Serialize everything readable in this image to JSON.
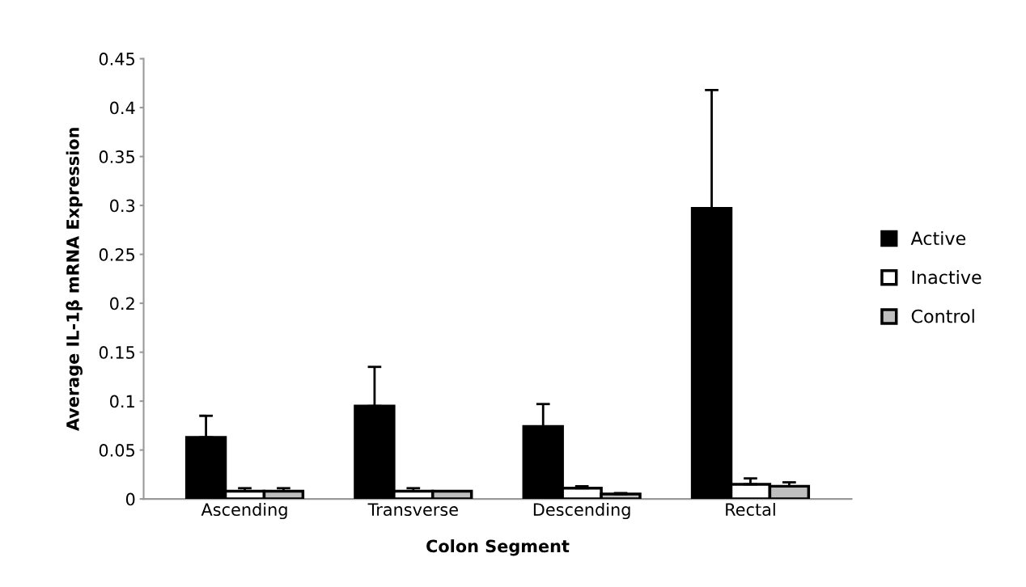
{
  "chart_data": {
    "type": "bar",
    "xlabel": "Colon Segment",
    "ylabel": "Average IL-1β mRNA Expression",
    "categories": [
      "Ascending",
      "Transverse",
      "Descending",
      "Rectal"
    ],
    "series": [
      {
        "name": "Active",
        "color": "#000000",
        "values": [
          0.063,
          0.095,
          0.074,
          0.297
        ],
        "errors": [
          [
            0.063,
            0.085
          ],
          [
            0.095,
            0.135
          ],
          [
            0.074,
            0.097
          ],
          [
            0.297,
            0.418
          ]
        ]
      },
      {
        "name": "Inactive",
        "color": "#ffffff",
        "values": [
          0.008,
          0.008,
          0.011,
          0.015
        ],
        "errors": [
          [
            0.008,
            0.011
          ],
          [
            0.008,
            0.011
          ],
          [
            0.011,
            0.013
          ],
          [
            0.015,
            0.021
          ]
        ]
      },
      {
        "name": "Control",
        "color": "#bfbfbf",
        "values": [
          0.008,
          0.008,
          0.005,
          0.013
        ],
        "errors": [
          [
            0.008,
            0.011
          ],
          [
            0.008,
            0.008
          ],
          [
            0.005,
            0.006
          ],
          [
            0.013,
            0.017
          ]
        ]
      }
    ],
    "ylim": [
      0,
      0.45
    ],
    "yticks": [
      0,
      0.05,
      0.1,
      0.15,
      0.2,
      0.25,
      0.3,
      0.35,
      0.4,
      0.45
    ],
    "grid": false,
    "legend": "right"
  }
}
